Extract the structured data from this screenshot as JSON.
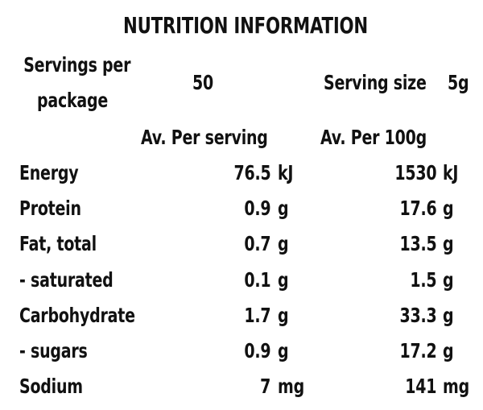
{
  "panel": {
    "title": "NUTRITION INFORMATION",
    "servings_per_package_label_line1": "Servings per",
    "servings_per_package_label_line2": "package",
    "servings_per_package_value": "50",
    "serving_size_label": "Serving size",
    "serving_size_value": "5g",
    "col_per_serving_header": "Av. Per serving",
    "col_per_100g_header": "Av. Per 100g"
  },
  "rows": [
    {
      "name": "Energy",
      "per_serving": "76.5",
      "per_serving_unit": "kJ",
      "per_100g": "1530",
      "per_100g_unit": "kJ"
    },
    {
      "name": "Protein",
      "per_serving": "0.9",
      "per_serving_unit": "g",
      "per_100g": "17.6",
      "per_100g_unit": "g"
    },
    {
      "name": "Fat, total",
      "per_serving": "0.7",
      "per_serving_unit": "g",
      "per_100g": "13.5",
      "per_100g_unit": "g"
    },
    {
      "name": "- saturated",
      "per_serving": "0.1",
      "per_serving_unit": "g",
      "per_100g": "1.5",
      "per_100g_unit": "g"
    },
    {
      "name": "Carbohydrate",
      "per_serving": "1.7",
      "per_serving_unit": "g",
      "per_100g": "33.3",
      "per_100g_unit": "g"
    },
    {
      "name": "- sugars",
      "per_serving": "0.9",
      "per_serving_unit": "g",
      "per_100g": "17.2",
      "per_100g_unit": "g"
    },
    {
      "name": "Sodium",
      "per_serving": "7",
      "per_serving_unit": "mg",
      "per_100g": "141",
      "per_100g_unit": "mg"
    }
  ]
}
